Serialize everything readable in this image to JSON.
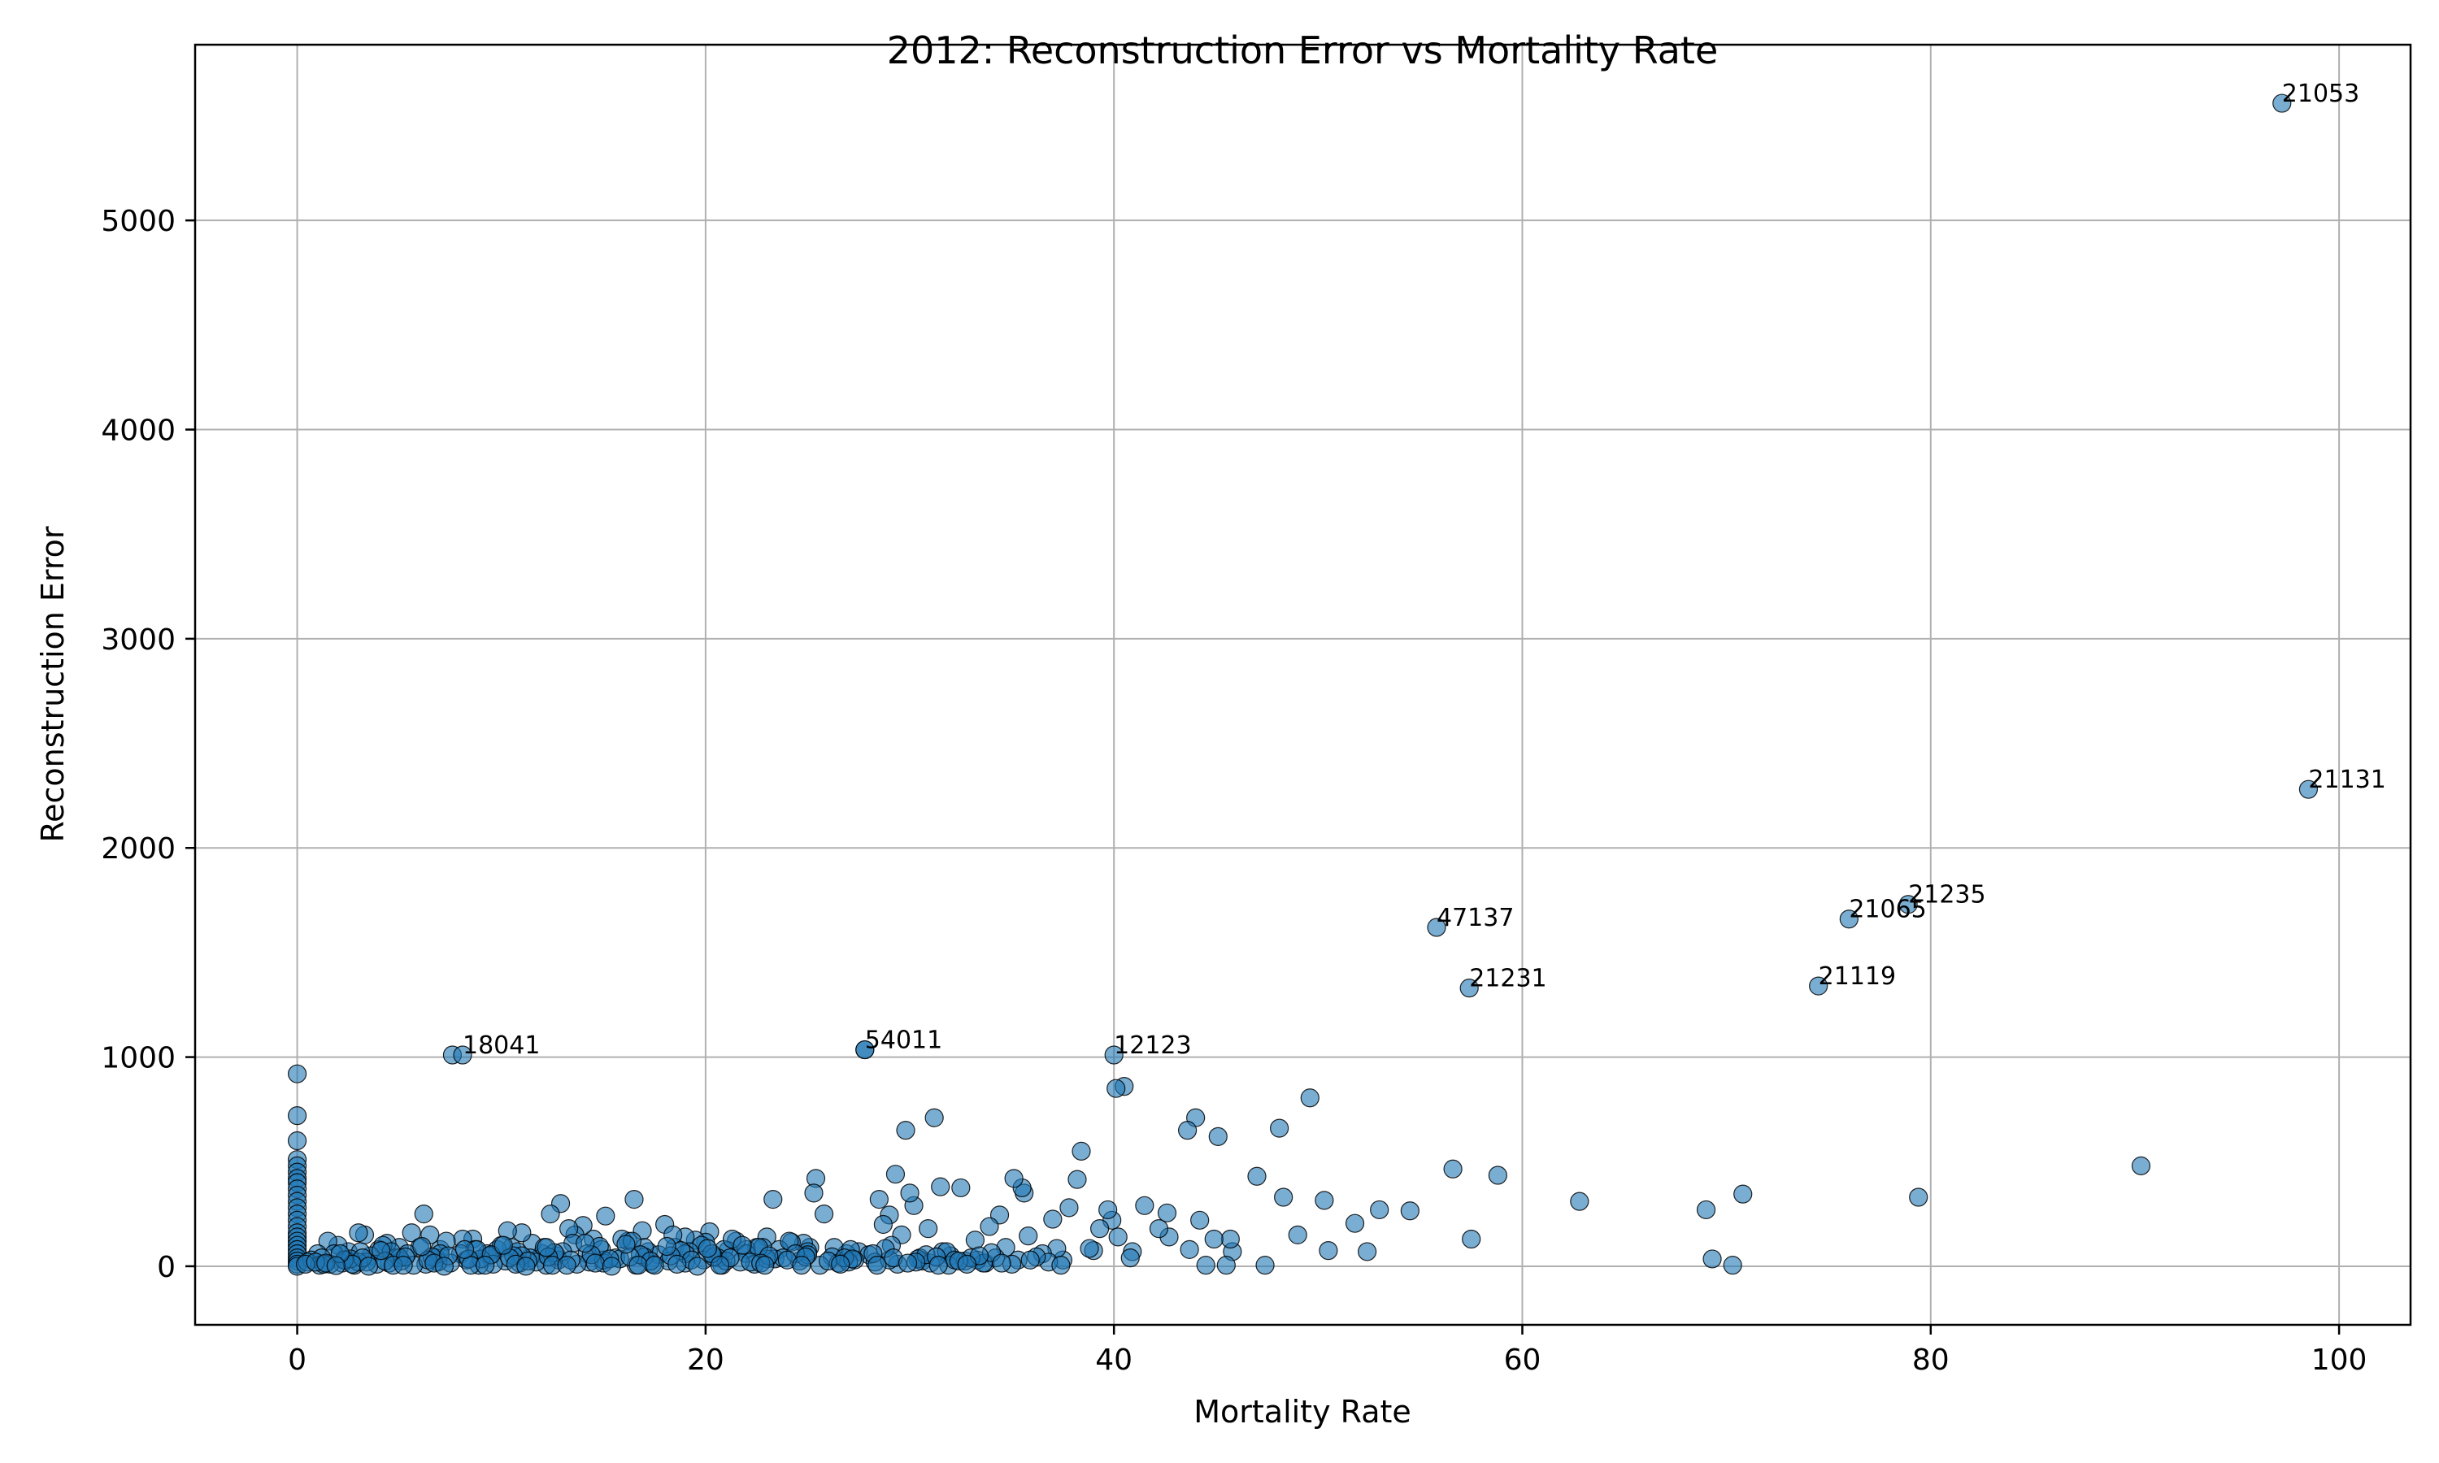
{
  "chart_data": {
    "type": "scatter",
    "title": "2012: Reconstruction Error vs Mortality Rate",
    "xlabel": "Mortality Rate",
    "ylabel": "Reconstruction Error",
    "xlim": [
      -5,
      103.5
    ],
    "ylim": [
      -280,
      5840
    ],
    "xticks": [
      0,
      20,
      40,
      60,
      80,
      100
    ],
    "yticks": [
      0,
      1000,
      2000,
      3000,
      4000,
      5000
    ],
    "grid": true,
    "color": "#1f77b4",
    "annotations": [
      {
        "label": "21053",
        "x": 97.2,
        "y": 5560
      },
      {
        "label": "21131",
        "x": 98.5,
        "y": 2280
      },
      {
        "label": "21235",
        "x": 78.9,
        "y": 1730
      },
      {
        "label": "21065",
        "x": 76.0,
        "y": 1660
      },
      {
        "label": "21119",
        "x": 74.5,
        "y": 1340
      },
      {
        "label": "47137",
        "x": 55.8,
        "y": 1620
      },
      {
        "label": "21231",
        "x": 57.4,
        "y": 1330
      },
      {
        "label": "12123",
        "x": 40.0,
        "y": 1010
      },
      {
        "label": "54011",
        "x": 27.8,
        "y": 1035
      },
      {
        "label": "18041",
        "x": 8.1,
        "y": 1010
      }
    ],
    "x": [
      0,
      0,
      0,
      0,
      0,
      0,
      0,
      0,
      0,
      0,
      0,
      0,
      0,
      0,
      0,
      0,
      0,
      0,
      0,
      0,
      0,
      0,
      0,
      0,
      0,
      90.3,
      79.4,
      70.8,
      69.0,
      69.3,
      70.3,
      62.8,
      58.8,
      57.5,
      56.6,
      54.5,
      53.0,
      52.4,
      51.8,
      50.5,
      50.3,
      49.6,
      49.0,
      48.3,
      48.1,
      47.4,
      47.0,
      45.8,
      45.7,
      45.5,
      45.1,
      44.9,
      44.5,
      44.2,
      44.0,
      43.7,
      43.6,
      42.7,
      42.6,
      42.2,
      41.5,
      40.9,
      40.8,
      40.5,
      40.2,
      40.1,
      39.9,
      39.7,
      39.3,
      39.0,
      38.8,
      38.4,
      38.2,
      37.8,
      37.5,
      37.2,
      37.0,
      36.5,
      35.8,
      35.6,
      35.5,
      35.3,
      35.1,
      34.7,
      34.4,
      33.9,
      33.7,
      33.3,
      33.2,
      32.5,
      32.0,
      31.6,
      31.5,
      31.2,
      30.9,
      30.5,
      30.2,
      30.0,
      29.8,
      29.6,
      29.3,
      29.0,
      28.7,
      28.5,
      27.8,
      27.5,
      26.9,
      26.3,
      25.8,
      25.4,
      25.3,
      25.1,
      24.8,
      24.2,
      23.6,
      23.3,
      23.0,
      22.5,
      22.0,
      21.5,
      21.1,
      20.9,
      20.2,
      20.0,
      19.5,
      19.0,
      18.5,
      18.0,
      17.2,
      16.9,
      16.5,
      16.2,
      15.9,
      15.1,
      14.5,
      14.0,
      13.6,
      13.3,
      12.9,
      12.4,
      12.0,
      11.5,
      11.0,
      10.5,
      10.3,
      9.8,
      9.3,
      8.6,
      8.1,
      7.6,
      7.0,
      6.5,
      6.2,
      5.6,
      5.0,
      4.4,
      4.0,
      3.3,
      3.0,
      2.5,
      2.0,
      1.5,
      1.0,
      0.7,
      34.2,
      31.8,
      30.6,
      29.1,
      28.0,
      27.1,
      26.2,
      25.0,
      24.1,
      23.4,
      22.8,
      22.0,
      21.3,
      20.6,
      19.8,
      19.2,
      18.4,
      17.7,
      17.0,
      16.4,
      15.6,
      14.9,
      14.2,
      13.5,
      12.7,
      12.1,
      11.4,
      10.8,
      10.0,
      9.4,
      8.7,
      8.0,
      7.3,
      6.8,
      6.0,
      5.4,
      4.8,
      4.2,
      3.6,
      3.1,
      2.4,
      1.8,
      1.2,
      0.5,
      33.6,
      32.7,
      31.9,
      30.4,
      29.4,
      28.3,
      27.3,
      26.5,
      25.6,
      24.6,
      23.8,
      22.4,
      21.7,
      20.8,
      19.9,
      19.0,
      18.2,
      17.4,
      16.6,
      15.8,
      15.0,
      14.3,
      13.7,
      12.8,
      12.2,
      11.7,
      10.9,
      10.2,
      9.6,
      8.9,
      8.3,
      7.5,
      6.9,
      6.3,
      5.7,
      5.1,
      4.5,
      3.9,
      3.4,
      2.8,
      2.2,
      1.6,
      1.1,
      0.4,
      36.8,
      35.0,
      33.0,
      31.0,
      29.0,
      27.0,
      25.0,
      23.0,
      21.0,
      19.0,
      17.0,
      15.0,
      13.0,
      11.0,
      9.0,
      7.0,
      5.0,
      3.0,
      1.3,
      37.4,
      36.2,
      34.0,
      32.2,
      30.8,
      28.8,
      26.8,
      24.4,
      22.6,
      20.4,
      18.8,
      16.8,
      14.8,
      12.6,
      10.6,
      8.8,
      6.6,
      4.6,
      2.6,
      0.9,
      35.9,
      34.5,
      33.4,
      32.4,
      31.3,
      30.3,
      29.2,
      28.2,
      27.2,
      26.0,
      24.9,
      24.0,
      23.1,
      22.2,
      21.2,
      20.3,
      19.3,
      18.3,
      17.3,
      16.3,
      15.3,
      14.4,
      13.4,
      12.3,
      11.3,
      10.4,
      9.5,
      8.4,
      7.4,
      6.4,
      5.3,
      4.3,
      3.2,
      2.3,
      1.4,
      32.8,
      31.4,
      29.9,
      28.4,
      26.6,
      24.7,
      22.7,
      20.7,
      18.6,
      16.7,
      14.6,
      12.5,
      10.7,
      8.5,
      6.7,
      4.7,
      2.7,
      21.8,
      20.1,
      18.1,
      16.1,
      14.1,
      12.2,
      10.1,
      8.2,
      6.1,
      4.1,
      2.1,
      22.9,
      19.6,
      17.5,
      15.4,
      13.2,
      11.2,
      9.2,
      7.2,
      5.2,
      3.5,
      1.9
    ],
    "y": [
      920,
      720,
      600,
      510,
      480,
      450,
      420,
      400,
      370,
      340,
      310,
      280,
      250,
      220,
      190,
      160,
      140,
      120,
      100,
      80,
      60,
      40,
      25,
      10,
      0,
      480,
      330,
      345,
      270,
      35,
      5,
      310,
      435,
      130,
      465,
      265,
      270,
      70,
      205,
      75,
      315,
      805,
      150,
      330,
      660,
      5,
      430,
      70,
      130,
      5,
      620,
      130,
      5,
      220,
      710,
      80,
      650,
      140,
      255,
      180,
      290,
      70,
      40,
      860,
      140,
      850,
      220,
      270,
      180,
      75,
      85,
      550,
      415,
      280,
      30,
      85,
      225,
      60,
      145,
      350,
      375,
      30,
      420,
      90,
      245,
      190,
      15,
      30,
      125,
      375,
      50,
      70,
      380,
      710,
      180,
      40,
      290,
      350,
      650,
      150,
      440,
      245,
      200,
      320,
      1035,
      70,
      60,
      90,
      250,
      420,
      350,
      90,
      110,
      115,
      80,
      320,
      140,
      90,
      80,
      120,
      75,
      80,
      165,
      115,
      125,
      140,
      90,
      200,
      70,
      170,
      320,
      120,
      130,
      240,
      130,
      195,
      150,
      180,
      300,
      250,
      60,
      110,
      160,
      90,
      170,
      80,
      60,
      130,
      130,
      1010,
      80,
      150,
      250,
      160,
      90,
      110,
      80,
      150,
      160,
      70,
      100,
      120,
      60,
      30,
      40,
      70,
      25,
      100,
      55,
      80,
      45,
      70,
      120,
      35,
      90,
      60,
      130,
      40,
      100,
      70,
      150,
      55,
      90,
      120,
      40,
      80,
      60,
      110,
      50,
      90,
      40,
      70,
      100,
      50,
      80,
      60,
      120,
      40,
      90,
      60,
      40,
      100,
      50,
      70,
      30,
      60,
      40,
      20,
      15,
      25,
      5,
      35,
      10,
      20,
      30,
      15,
      5,
      25,
      40,
      10,
      20,
      5,
      30,
      15,
      25,
      10,
      5,
      35,
      15,
      20,
      10,
      30,
      5,
      20,
      15,
      25,
      10,
      5,
      30,
      15,
      20,
      10,
      5,
      25,
      15,
      10,
      20,
      5,
      15,
      10,
      5,
      10,
      20,
      10,
      40,
      15,
      30,
      20,
      55,
      35,
      25,
      60,
      45,
      30,
      70,
      50,
      35,
      60,
      40,
      20,
      10,
      5,
      45,
      65,
      30,
      55,
      85,
      40,
      60,
      90,
      45,
      75,
      55,
      95,
      65,
      50,
      80,
      45,
      70,
      35,
      20,
      30,
      15,
      50,
      25,
      45,
      20,
      40,
      60,
      35,
      25,
      45,
      30,
      50,
      20,
      40,
      60,
      30,
      50,
      25,
      45,
      35,
      55,
      30,
      45,
      25,
      40,
      55,
      35,
      50,
      30,
      45,
      25,
      40,
      30,
      15,
      10,
      5,
      15,
      5,
      10,
      5,
      15,
      5,
      10,
      5,
      15,
      5,
      10,
      5,
      15,
      5,
      10,
      100,
      85,
      95,
      105,
      110,
      90,
      100,
      80,
      95,
      75,
      60,
      5,
      0,
      5,
      0,
      5,
      0,
      5,
      0,
      5,
      0,
      3
    ]
  }
}
